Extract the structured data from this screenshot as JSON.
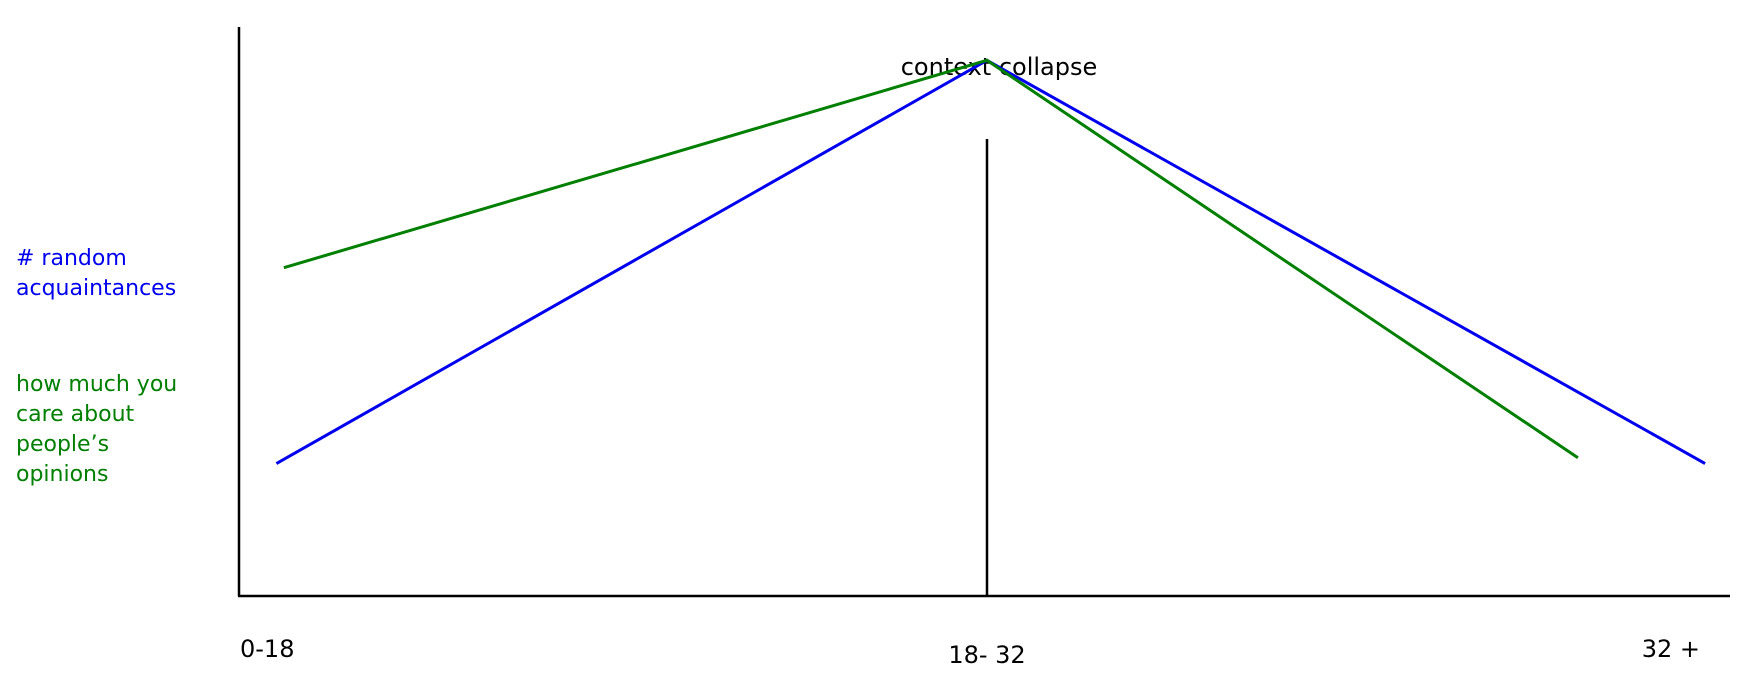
{
  "chart_data": {
    "type": "line",
    "title": "",
    "xlabel": "",
    "ylabel": "",
    "categories": [
      "0-18",
      "18- 32",
      "32 +"
    ],
    "x": [
      0,
      1,
      2
    ],
    "ylim": [
      0,
      1
    ],
    "grid": false,
    "legend_placement": "left",
    "annotation": {
      "text": "context collapse",
      "x": 1
    },
    "series": [
      {
        "name": "# random acquaintances",
        "color": "#0000ee",
        "points": [
          {
            "x": 0.05,
            "y": 0.23
          },
          {
            "x": 1.0,
            "y": 0.93
          },
          {
            "x": 1.96,
            "y": 0.23
          }
        ]
      },
      {
        "name": "how much you care about people’s opinions",
        "color": "#007f00",
        "points": [
          {
            "x": 0.06,
            "y": 0.57
          },
          {
            "x": 1.0,
            "y": 0.93
          },
          {
            "x": 1.79,
            "y": 0.24
          }
        ]
      }
    ]
  }
}
